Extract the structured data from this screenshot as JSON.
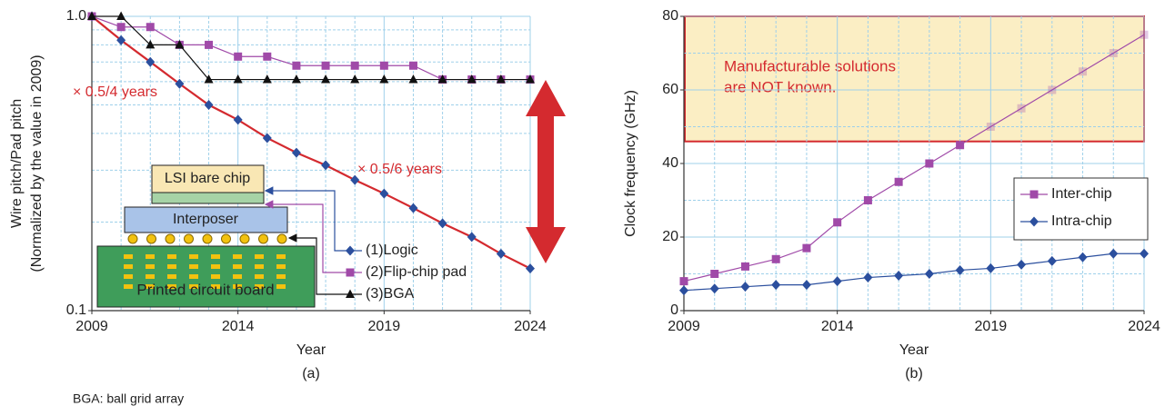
{
  "chart_data": [
    {
      "type": "line",
      "caption": "(a)",
      "y_label": [
        "Wire pitch/Pad pitch",
        "(Normalized by the value in 2009)"
      ],
      "x_label": "Year",
      "log_y": true,
      "grid": true,
      "xlim": [
        2009,
        2024
      ],
      "xticks": [
        2009,
        2014,
        2019,
        2024
      ],
      "minor_xticks": [
        2010,
        2011,
        2012,
        2013,
        2015,
        2016,
        2017,
        2018,
        2020,
        2021,
        2022,
        2023
      ],
      "ylim": [
        0.1,
        1
      ],
      "yticks": [
        0.1,
        {
          "value": 1,
          "label": "1.0"
        }
      ],
      "minor_yticks": [
        0.2,
        0.3,
        0.4,
        0.5,
        0.6,
        0.7,
        0.8,
        0.9
      ],
      "x": [
        2009,
        2010,
        2011,
        2012,
        2013,
        2014,
        2015,
        2016,
        2017,
        2018,
        2019,
        2020,
        2021,
        2022,
        2023,
        2024
      ],
      "series": [
        {
          "name": "(1)Logic",
          "color": "#2b4f9e",
          "line_color": "#d42a2f",
          "marker": "diamond",
          "values": [
            1,
            0.83,
            0.7,
            0.59,
            0.5,
            0.445,
            0.386,
            0.344,
            0.312,
            0.278,
            0.25,
            0.223,
            0.198,
            0.178,
            0.156,
            0.139
          ]
        },
        {
          "name": "(2)Flip-chip pad",
          "color": "#a04aa8",
          "line_color": "#a04aa8",
          "marker": "square",
          "values": [
            1,
            0.92,
            0.92,
            0.8,
            0.8,
            0.73,
            0.73,
            0.68,
            0.68,
            0.68,
            0.68,
            0.68,
            0.61,
            0.61,
            0.61,
            0.61
          ]
        },
        {
          "name": "(3)BGA",
          "color": "#111111",
          "line_color": "#111111",
          "marker": "triangle",
          "values": [
            1,
            1,
            0.8,
            0.8,
            0.61,
            0.61,
            0.61,
            0.61,
            0.61,
            0.61,
            0.61,
            0.61,
            0.61,
            0.61,
            0.61,
            0.61
          ]
        }
      ],
      "annotations": [
        "× 0.5/4 years",
        "× 0.5/6 years"
      ],
      "diagram": {
        "chip": "LSI bare chip",
        "interposer": "Interposer",
        "board": "Printed circuit board"
      }
    },
    {
      "type": "line",
      "caption": "(b)",
      "y_label": [
        "Clock frequency (GHz)"
      ],
      "x_label": "Year",
      "grid": true,
      "xlim": [
        2009,
        2024
      ],
      "xticks": [
        2009,
        2014,
        2019,
        2024
      ],
      "minor_xticks": [
        2010,
        2011,
        2012,
        2013,
        2015,
        2016,
        2017,
        2018,
        2020,
        2021,
        2022,
        2023
      ],
      "ylim": [
        0,
        80
      ],
      "yticks": [
        0,
        20,
        40,
        60,
        80
      ],
      "minor_yticks": [
        10,
        30,
        50,
        70
      ],
      "x": [
        2009,
        2010,
        2011,
        2012,
        2013,
        2014,
        2015,
        2016,
        2017,
        2018,
        2019,
        2020,
        2021,
        2022,
        2023,
        2024
      ],
      "series": [
        {
          "name": "Inter-chip",
          "color": "#a04aa8",
          "line_color": "#a04aa8",
          "marker": "square",
          "values": [
            8,
            10,
            12,
            14,
            17,
            24,
            30,
            35,
            40,
            45,
            50,
            55,
            60,
            65,
            70,
            75
          ]
        },
        {
          "name": "Intra-chip",
          "color": "#2b4f9e",
          "line_color": "#2b4f9e",
          "marker": "diamond",
          "values": [
            5.5,
            6,
            6.5,
            7,
            7,
            8,
            9,
            9.5,
            10,
            11,
            11.5,
            12.5,
            13.5,
            14.5,
            15.5,
            15.5
          ]
        }
      ],
      "shaded_region": {
        "ylim": [
          46,
          80
        ],
        "label": [
          "Manufacturable solutions",
          "are NOT known."
        ]
      }
    }
  ],
  "footnote": "BGA: ball grid array"
}
